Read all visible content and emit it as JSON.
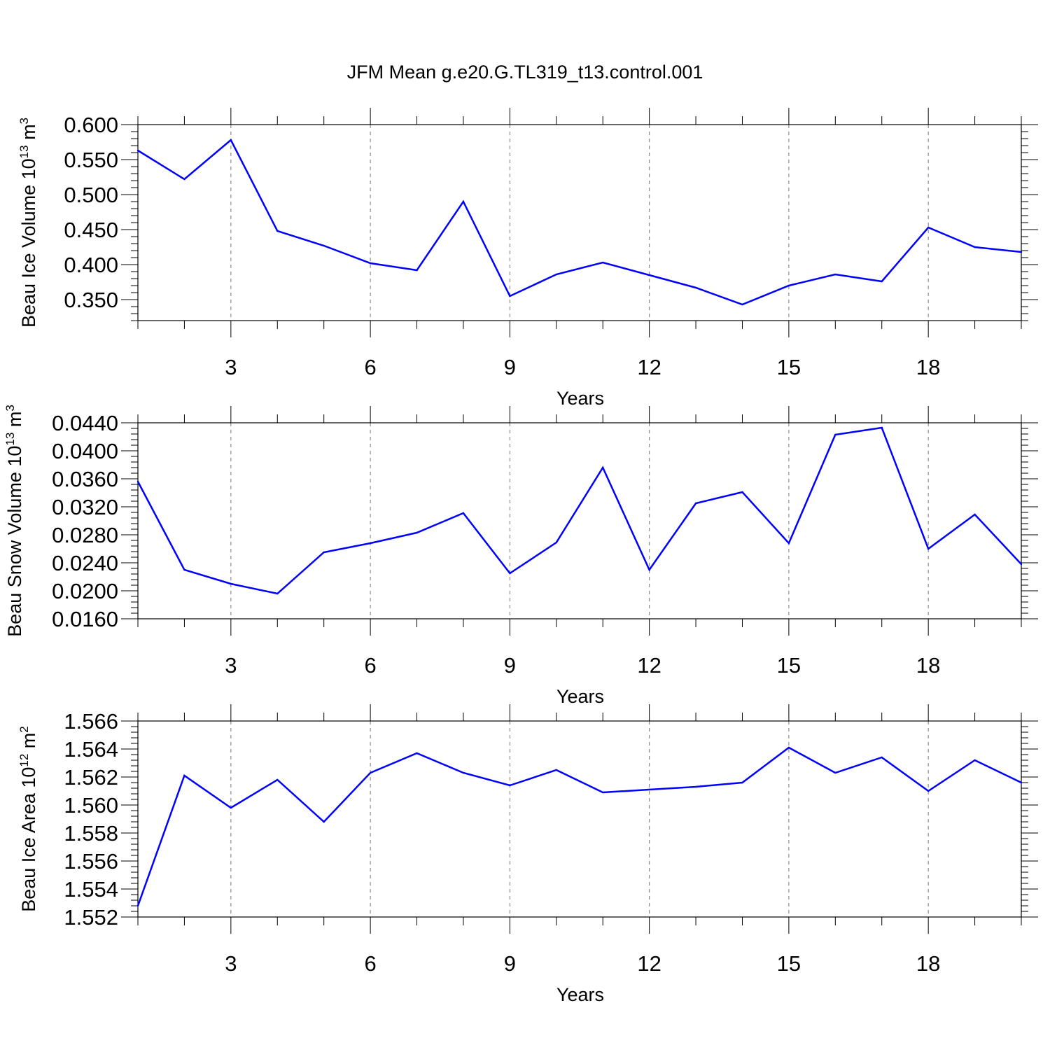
{
  "title": "JFM Mean g.e20.G.TL319_t13.control.001",
  "line_color": "#0000ff",
  "chart_data": [
    {
      "type": "line",
      "title": "JFM Mean g.e20.G.TL319_t13.control.001",
      "xlabel": "Years",
      "ylabel": "Beau Ice Volume 10",
      "ylabel_exp": "13",
      "ylabel_unit": " m",
      "ylabel_unit_exp": "3",
      "xlim": [
        1,
        20
      ],
      "ylim": [
        0.32,
        0.6
      ],
      "x_ticks": [
        3,
        6,
        9,
        12,
        15,
        18
      ],
      "y_ticks": [
        "0.600",
        "0.550",
        "0.500",
        "0.450",
        "0.400",
        "0.350"
      ],
      "grid": "vertical dashed at major x ticks",
      "series": [
        {
          "x": [
            1,
            2,
            3,
            4,
            5,
            6,
            7,
            8,
            9,
            10,
            11,
            12,
            13,
            14,
            15,
            16,
            17,
            18,
            19,
            20
          ],
          "values": [
            0.563,
            0.522,
            0.578,
            0.448,
            0.427,
            0.402,
            0.392,
            0.49,
            0.355,
            0.386,
            0.403,
            0.385,
            0.367,
            0.343,
            0.37,
            0.386,
            0.376,
            0.453,
            0.425,
            0.418
          ]
        }
      ]
    },
    {
      "type": "line",
      "xlabel": "Years",
      "ylabel": "Beau Snow Volume 10",
      "ylabel_exp": "13",
      "ylabel_unit": " m",
      "ylabel_unit_exp": "3",
      "xlim": [
        1,
        20
      ],
      "ylim": [
        0.016,
        0.044
      ],
      "x_ticks": [
        3,
        6,
        9,
        12,
        15,
        18
      ],
      "y_ticks": [
        "0.0440",
        "0.0400",
        "0.0360",
        "0.0320",
        "0.0280",
        "0.0240",
        "0.0200",
        "0.0160"
      ],
      "grid": "vertical dashed at major x ticks",
      "series": [
        {
          "x": [
            1,
            2,
            3,
            4,
            5,
            6,
            7,
            8,
            9,
            10,
            11,
            12,
            13,
            14,
            15,
            16,
            17,
            18,
            19,
            20
          ],
          "values": [
            0.0356,
            0.023,
            0.021,
            0.0196,
            0.0255,
            0.0268,
            0.0283,
            0.0311,
            0.0225,
            0.0269,
            0.0376,
            0.023,
            0.0325,
            0.0341,
            0.0268,
            0.0423,
            0.0433,
            0.026,
            0.0309,
            0.0238
          ]
        }
      ]
    },
    {
      "type": "line",
      "xlabel": "Years",
      "ylabel": "Beau Ice Area 10",
      "ylabel_exp": "12",
      "ylabel_unit": " m",
      "ylabel_unit_exp": "2",
      "xlim": [
        1,
        20
      ],
      "ylim": [
        1.552,
        1.566
      ],
      "x_ticks": [
        3,
        6,
        9,
        12,
        15,
        18
      ],
      "y_ticks": [
        "1.566",
        "1.564",
        "1.562",
        "1.560",
        "1.558",
        "1.556",
        "1.554",
        "1.552"
      ],
      "grid": "vertical dashed at major x ticks",
      "series": [
        {
          "x": [
            1,
            2,
            3,
            4,
            5,
            6,
            7,
            8,
            9,
            10,
            11,
            12,
            13,
            14,
            15,
            16,
            17,
            18,
            19,
            20
          ],
          "values": [
            1.5528,
            1.5621,
            1.5598,
            1.5618,
            1.5588,
            1.5623,
            1.5637,
            1.5623,
            1.5614,
            1.5625,
            1.5609,
            1.5611,
            1.5613,
            1.5616,
            1.5641,
            1.5623,
            1.5634,
            1.561,
            1.5632,
            1.5616
          ]
        }
      ]
    }
  ]
}
